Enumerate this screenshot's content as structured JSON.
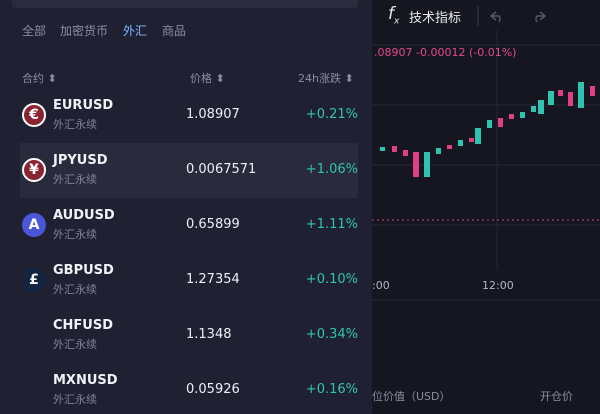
{
  "toolbar": {
    "fx": "f",
    "fx_sub": "x",
    "indicator": "技术指标"
  },
  "price_line": ".08907  -0.00012 (-0.01%)",
  "time_labels": [
    ":00",
    "12:00"
  ],
  "bottom": {
    "position_value": "位价值（USD）",
    "open_price": "开仓价"
  },
  "tabs": [
    "全部",
    "加密货币",
    "外汇",
    "商品"
  ],
  "active_tab": 2,
  "header": {
    "contract": "合约",
    "price": "价格",
    "change": "24h涨跌"
  },
  "rows": [
    {
      "icon": "€",
      "symbol": "EURUSD",
      "sub": "外汇永续",
      "price": "1.08907",
      "change": "+0.21%"
    },
    {
      "icon": "¥",
      "symbol": "JPYUSD",
      "sub": "外汇永续",
      "price": "0.0067571",
      "change": "+1.06%"
    },
    {
      "icon": "A",
      "symbol": "AUDUSD",
      "sub": "外汇永续",
      "price": "0.65899",
      "change": "+1.11%"
    },
    {
      "icon": "£",
      "symbol": "GBPUSD",
      "sub": "外汇永续",
      "price": "1.27354",
      "change": "+0.10%"
    },
    {
      "symbol": "CHFUSD",
      "sub": "外汇永续",
      "price": "1.1348",
      "change": "+0.34%"
    },
    {
      "symbol": "MXNUSD",
      "sub": "外汇永续",
      "price": "0.05926",
      "change": "+0.16%"
    }
  ],
  "selected_row": 1
}
